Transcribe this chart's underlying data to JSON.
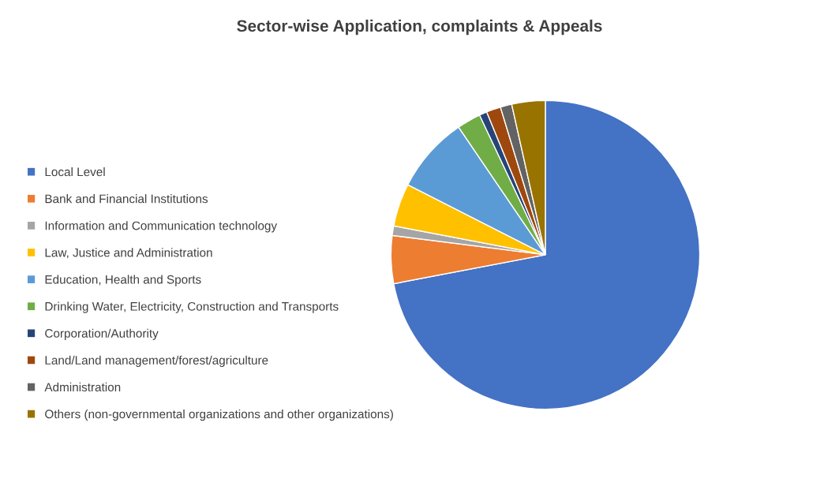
{
  "chart_data": {
    "type": "pie",
    "title": "Sector-wise Application, complaints & Appeals",
    "categories": [
      "Local Level",
      "Bank and Financial Institutions",
      "Information and Communication technology",
      "Law, Justice and Administration",
      "Education, Health and Sports",
      "Drinking Water, Electricity, Construction and Transports",
      "Corporation/Authority",
      "Land/Land management/forest/agriculture",
      "Administration",
      "Others (non-governmental organizations and other organizations)"
    ],
    "values": [
      72,
      5,
      1,
      4.5,
      8,
      2.5,
      0.8,
      1.5,
      1.2,
      3.5
    ],
    "colors": [
      "#4472c4",
      "#ed7d31",
      "#a5a5a5",
      "#ffc000",
      "#5b9bd5",
      "#70ad47",
      "#264478",
      "#9e480e",
      "#636363",
      "#997300"
    ],
    "legend": "left"
  }
}
